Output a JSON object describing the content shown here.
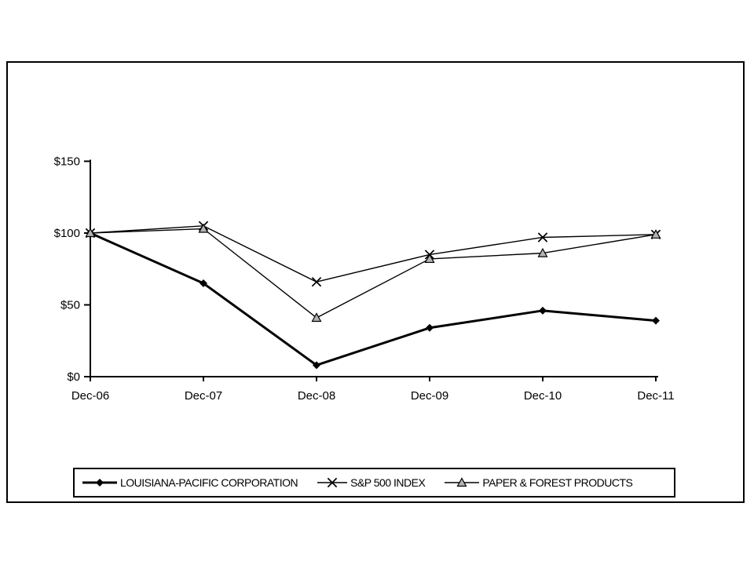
{
  "page": {
    "background": "#ffffff",
    "line_color": "#000000",
    "triangle_fill": "#b3b3b3"
  },
  "chart_data": {
    "type": "line",
    "title": "",
    "xlabel": "",
    "ylabel": "",
    "grid": false,
    "legend_position": "bottom",
    "categories": [
      "Dec-06",
      "Dec-07",
      "Dec-08",
      "Dec-09",
      "Dec-10",
      "Dec-11"
    ],
    "yticks": [
      0,
      50,
      100,
      150
    ],
    "ytick_labels": [
      "$0",
      "$50",
      "$100",
      "$150"
    ],
    "ylim": [
      0,
      150
    ],
    "series": [
      {
        "name": "LOUISIANA-PACIFIC CORPORATION",
        "marker": "diamond",
        "line_weight": "thick",
        "color": "#000000",
        "marker_fill": "#000000",
        "values": [
          100,
          65,
          8,
          34,
          46,
          39
        ]
      },
      {
        "name": "S&P 500 INDEX",
        "marker": "x",
        "line_weight": "thin",
        "color": "#000000",
        "marker_fill": "#000000",
        "values": [
          100,
          105,
          66,
          85,
          97,
          99
        ]
      },
      {
        "name": "PAPER & FOREST PRODUCTS",
        "marker": "triangle",
        "line_weight": "thin",
        "color": "#000000",
        "marker_fill": "#b3b3b3",
        "values": [
          100,
          103,
          41,
          82,
          86,
          99
        ]
      }
    ]
  }
}
